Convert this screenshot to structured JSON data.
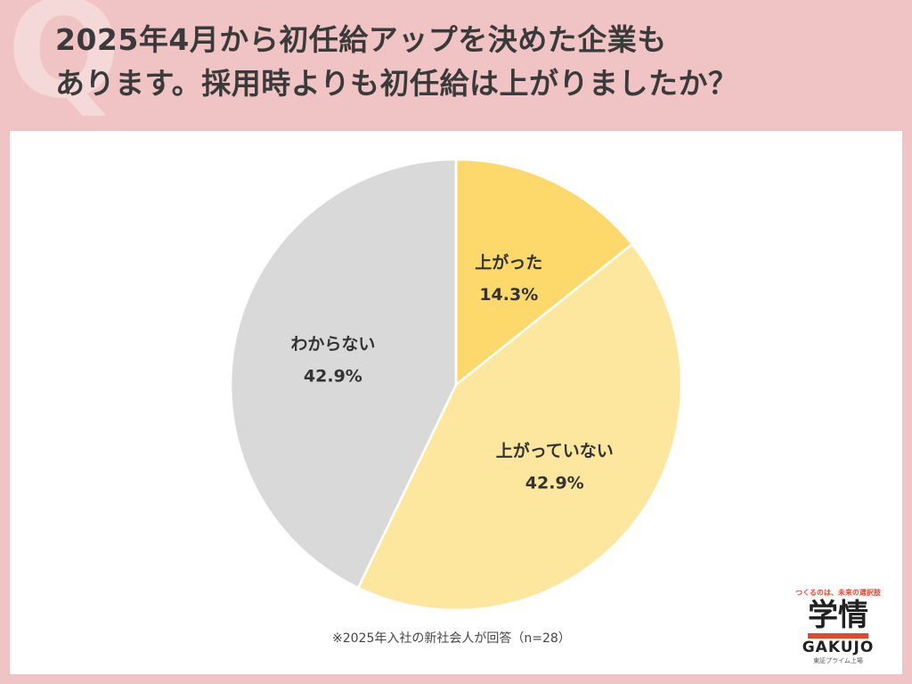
{
  "header": {
    "title_line1": "2025年4月から初任給アップを決めた企業も",
    "title_line2": "あります。採用時よりも初任給は上がりましたか？",
    "q_mark": "Q"
  },
  "chart_data": {
    "type": "pie",
    "title": "2025年4月から初任給アップを決めた企業もあります。採用時よりも初任給は上がりましたか？",
    "slices": [
      {
        "label": "上がった",
        "value": 14.3,
        "value_label": "14.3%",
        "color": "#fdd96b"
      },
      {
        "label": "上がっていない",
        "value": 42.9,
        "value_label": "42.9%",
        "color": "#fde79e"
      },
      {
        "label": "わからない",
        "value": 42.9,
        "value_label": "42.9%",
        "color": "#d9d9d9"
      }
    ],
    "start": "12 o'clock, clockwise",
    "note": "※2025年入社の新社会人が回答（n=28）"
  },
  "logo": {
    "tagline": "つくるのは、未来の選択肢",
    "kanji": "学情",
    "roman": "GAKUJO",
    "sub": "東証プライム上場"
  },
  "colors": {
    "background": "#f0c4c5",
    "panel": "#ffffff",
    "title_text": "#3a3a3a",
    "brand_accent": "#e2472f"
  }
}
